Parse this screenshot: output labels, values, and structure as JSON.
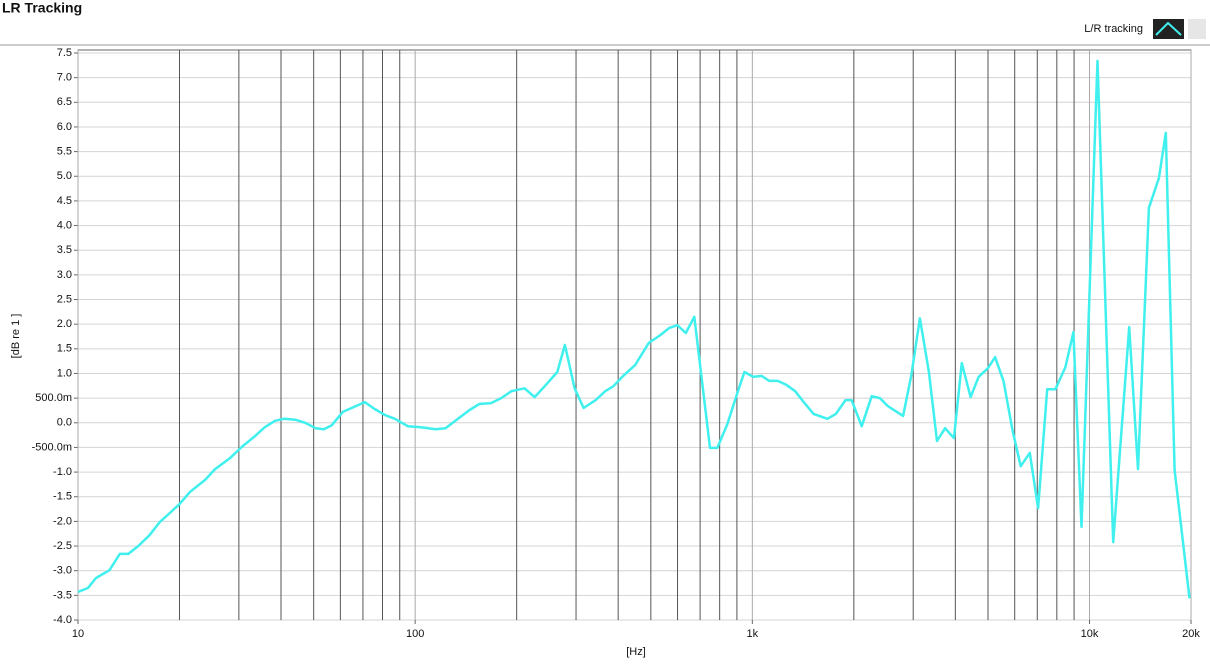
{
  "chart_data": {
    "type": "line",
    "title": "LR Tracking",
    "xlabel": "[Hz]",
    "ylabel": "[dB re 1 ]",
    "xscale": "log",
    "grid": true,
    "legend": "top-right",
    "xlim": [
      10,
      20000
    ],
    "ylim": [
      -4.0,
      7.5
    ],
    "xticks": [
      10,
      100,
      {
        "value": 1000,
        "label": "1k"
      },
      {
        "value": 10000,
        "label": "10k"
      },
      {
        "value": 20000,
        "label": "20k"
      }
    ],
    "yticks": [
      7.5,
      {
        "value": 7,
        "label": "7.0"
      },
      6.5,
      {
        "value": 6,
        "label": "6.0"
      },
      5.5,
      {
        "value": 5,
        "label": "5.0"
      },
      4.5,
      {
        "value": 4,
        "label": "4.0"
      },
      3.5,
      {
        "value": 3,
        "label": "3.0"
      },
      2.5,
      {
        "value": 2,
        "label": "2.0"
      },
      1.5,
      {
        "value": 1,
        "label": "1.0"
      },
      {
        "value": 0.5,
        "label": "500.0m"
      },
      {
        "value": 0,
        "label": "0.0"
      },
      {
        "value": -0.5,
        "label": "-500.0m"
      },
      {
        "value": -1,
        "label": "-1.0"
      },
      -1.5,
      {
        "value": -2,
        "label": "-2.0"
      },
      -2.5,
      {
        "value": -3,
        "label": "-3.0"
      },
      -3.5,
      {
        "value": -4,
        "label": "-4.0"
      }
    ],
    "x": [
      10,
      10.7,
      11.3,
      12.4,
      13.3,
      14.1,
      15.1,
      16.3,
      17.5,
      19,
      20,
      21.5,
      23.8,
      25.5,
      28.2,
      30.6,
      33.5,
      35.8,
      38.4,
      40.8,
      44.2,
      47.2,
      50.7,
      53.6,
      56.6,
      61,
      64.8,
      70.9,
      75.8,
      81.2,
      87.1,
      95.1,
      104,
      115,
      123,
      134,
      145,
      155,
      168,
      180,
      193,
      211,
      226,
      242,
      264,
      278,
      297,
      316,
      343,
      366,
      387,
      414,
      449,
      493,
      534,
      566,
      599,
      635,
      673,
      749,
      787,
      843,
      904,
      947,
      1007,
      1065,
      1123,
      1190,
      1260,
      1340,
      1420,
      1520,
      1670,
      1770,
      1890,
      1970,
      2110,
      2260,
      2390,
      2520,
      2800,
      2960,
      3140,
      3340,
      3530,
      3730,
      3960,
      4180,
      4440,
      4690,
      5000,
      5250,
      5560,
      5910,
      6250,
      6650,
      7040,
      7490,
      7920,
      8480,
      8960,
      9470,
      10560,
      11760,
      13110,
      13930,
      15000,
      16060,
      16840,
      17880,
      19800
    ],
    "series": [
      {
        "name": "L/R tracking",
        "color": "#3ff0ee",
        "values": [
          -3.43,
          -3.35,
          -3.15,
          -2.99,
          -2.66,
          -2.66,
          -2.5,
          -2.28,
          -2.01,
          -1.79,
          -1.65,
          -1.4,
          -1.16,
          -0.94,
          -0.72,
          -0.49,
          -0.27,
          -0.09,
          0.04,
          0.08,
          0.06,
          0.0,
          -0.11,
          -0.13,
          -0.05,
          0.22,
          0.3,
          0.42,
          0.28,
          0.16,
          0.08,
          -0.07,
          -0.09,
          -0.13,
          -0.11,
          0.08,
          0.26,
          0.38,
          0.4,
          0.5,
          0.64,
          0.7,
          0.52,
          0.74,
          1.03,
          1.58,
          0.7,
          0.3,
          0.46,
          0.64,
          0.74,
          0.95,
          1.17,
          1.62,
          1.78,
          1.92,
          1.98,
          1.82,
          2.15,
          -0.51,
          -0.51,
          -0.03,
          0.62,
          1.03,
          0.93,
          0.95,
          0.85,
          0.85,
          0.77,
          0.64,
          0.42,
          0.18,
          0.08,
          0.18,
          0.46,
          0.46,
          -0.07,
          0.54,
          0.5,
          0.34,
          0.14,
          0.95,
          2.12,
          1.03,
          -0.37,
          -0.11,
          -0.31,
          1.21,
          0.52,
          0.93,
          1.11,
          1.33,
          0.85,
          -0.15,
          -0.88,
          -0.61,
          -1.73,
          0.68,
          0.68,
          1.13,
          1.84,
          -2.11,
          7.34,
          -2.42,
          1.94,
          -0.94,
          4.36,
          4.96,
          5.88,
          -0.96,
          -3.56
        ]
      }
    ]
  }
}
